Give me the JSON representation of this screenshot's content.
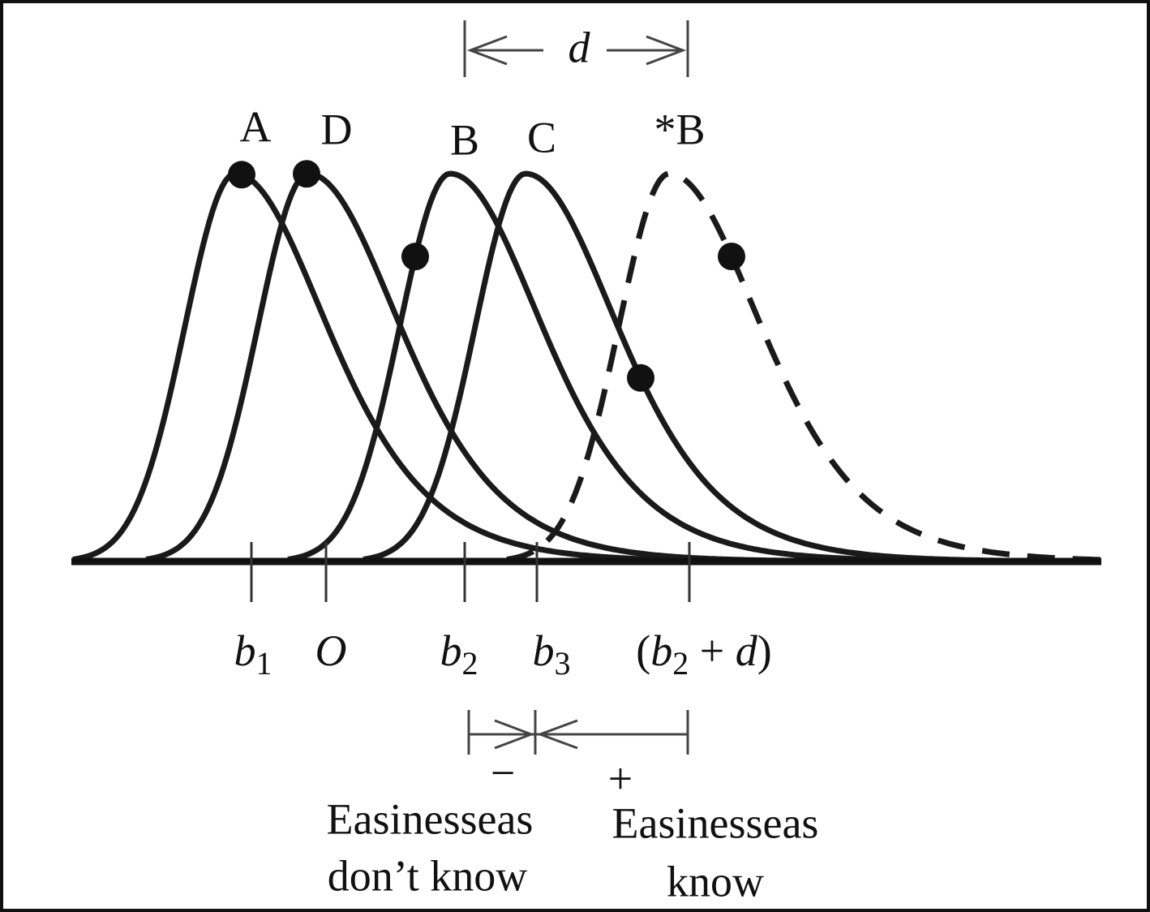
{
  "distance_label": "d",
  "curve_labels": [
    "A",
    "D",
    "B",
    "C",
    "*B"
  ],
  "tick_labels": [
    [
      {
        "text": "b",
        "style": "italic"
      },
      {
        "text": "1",
        "style": "sub"
      }
    ],
    [
      {
        "text": "O",
        "style": "italic"
      }
    ],
    [
      {
        "text": "b",
        "style": "italic"
      },
      {
        "text": "2",
        "style": "sub"
      }
    ],
    [
      {
        "text": "b",
        "style": "italic"
      },
      {
        "text": "3",
        "style": "sub"
      }
    ],
    [
      {
        "text": "(",
        "style": "normal"
      },
      {
        "text": "b",
        "style": "italic"
      },
      {
        "text": "2",
        "style": "sub"
      },
      {
        "text": " + ",
        "style": "normal"
      },
      {
        "text": "d",
        "style": "italic"
      },
      {
        "text": ")",
        "style": "normal"
      }
    ]
  ],
  "minus_sign": "−",
  "plus_sign": "+",
  "left_caption": [
    "Easinesseas",
    "don’t know"
  ],
  "right_caption": [
    "Easinesseas",
    "know"
  ]
}
